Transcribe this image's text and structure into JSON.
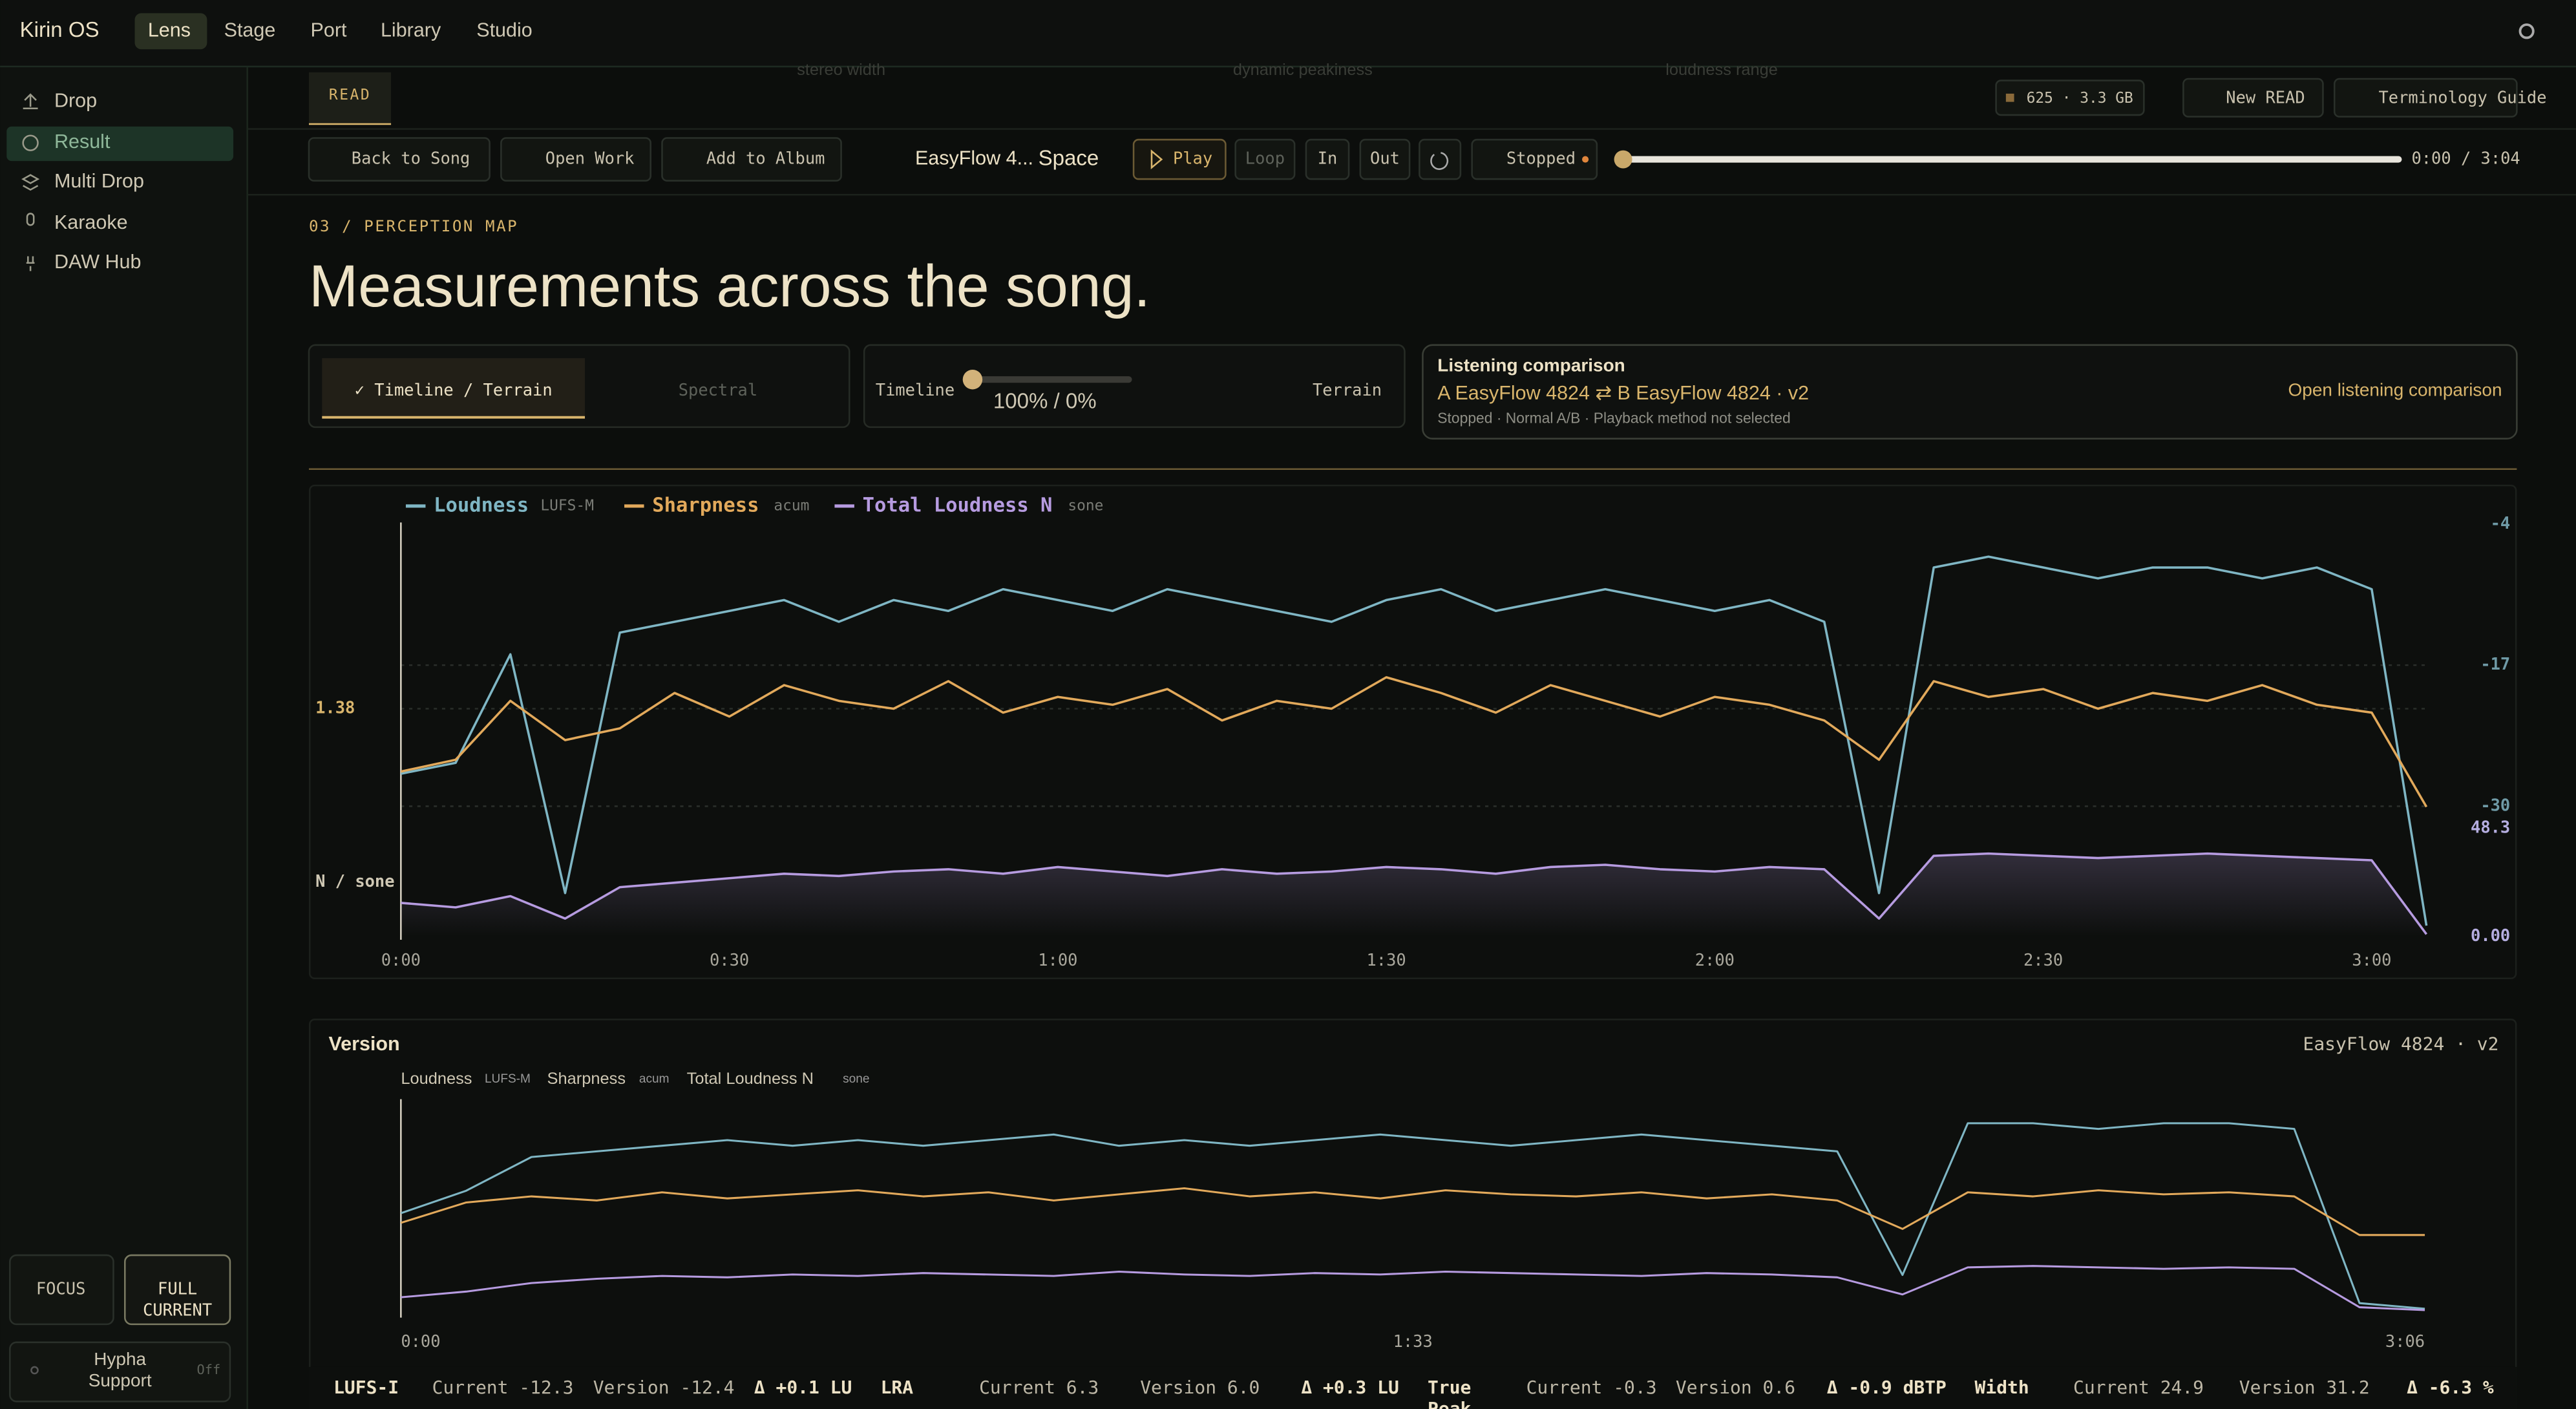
{
  "topbar": {
    "brand": "Kirin OS",
    "tabs": [
      "Lens",
      "Stage",
      "Port",
      "Library",
      "Studio"
    ]
  },
  "sidebar": {
    "items": [
      "Drop",
      "Result",
      "Multi Drop",
      "Karaoke",
      "DAW Hub"
    ],
    "focus": "FOCUS",
    "full": [
      "FULL",
      "CURRENT"
    ],
    "support": [
      "Hypha",
      "Support"
    ],
    "support_state": "Off"
  },
  "header": {
    "tab": "READ",
    "faded": [
      "stereo width",
      "dynamic peakiness",
      "loudness range"
    ],
    "storage": "625 · 3.3 GB",
    "new": "New READ",
    "guide": "Terminology Guide"
  },
  "toolbar": {
    "back": "Back to Song",
    "open": "Open Work",
    "album": "Add to Album",
    "track": "EasyFlow 4...",
    "space": "Space",
    "play": "Play",
    "loop": "Loop",
    "in": "In",
    "out": "Out",
    "status": "Stopped",
    "time": "0:00 / 3:04"
  },
  "section": {
    "kicker": "03 / PERCEPTION MAP",
    "title": "Measurements across the song."
  },
  "view": {
    "tabs": [
      "✓ Timeline / Terrain",
      "Spectral"
    ],
    "left": "Timeline",
    "mix": "100% / 0%",
    "right": "Terrain"
  },
  "compare": {
    "title": "Listening comparison",
    "pair": "A EasyFlow 4824 ⇄ B EasyFlow 4824 · v2",
    "status": "Stopped · Normal A/B · Playback method not selected",
    "link": "Open listening comparison"
  },
  "charts": [
    {
      "type": "line",
      "grid": true,
      "left_label": "N / sone",
      "xlim": [
        0,
        185
      ],
      "xticks": [
        {
          "value": 0,
          "label": "0:00"
        },
        {
          "value": 30,
          "label": "0:30"
        },
        {
          "value": 60,
          "label": "1:00"
        },
        {
          "value": 90,
          "label": "1:30"
        },
        {
          "value": 120,
          "label": "2:00"
        },
        {
          "value": 150,
          "label": "2:30"
        },
        {
          "value": 180,
          "label": "3:00"
        }
      ],
      "x": [
        0,
        5,
        10,
        15,
        20,
        25,
        30,
        35,
        40,
        45,
        50,
        55,
        60,
        65,
        70,
        75,
        80,
        85,
        90,
        95,
        100,
        105,
        110,
        115,
        120,
        125,
        130,
        135,
        140,
        145,
        150,
        155,
        160,
        165,
        170,
        175,
        180,
        185
      ],
      "series": [
        {
          "name": "Loudness",
          "unit": "LUFS-M",
          "color": "#7fb6c4",
          "ylim": [
            -42,
            -4
          ],
          "yticks": [
            -4,
            -17,
            -30
          ],
          "values": [
            -27,
            -26,
            -16,
            -38,
            -14,
            -13,
            -12,
            -11,
            -13,
            -11,
            -12,
            -10,
            -11,
            -12,
            -10,
            -11,
            -12,
            -13,
            -11,
            -10,
            -12,
            -11,
            -10,
            -11,
            -12,
            -11,
            -13,
            -38,
            -8,
            -7,
            -8,
            -9,
            -8,
            -8,
            -9,
            -8,
            -10,
            -41
          ]
        },
        {
          "name": "Sharpness",
          "unit": "acum",
          "color": "#e2a95b",
          "ylim": [
            0.8,
            1.85
          ],
          "yticks": [
            1.38
          ],
          "values": [
            1.22,
            1.25,
            1.4,
            1.3,
            1.33,
            1.42,
            1.36,
            1.44,
            1.4,
            1.38,
            1.45,
            1.37,
            1.41,
            1.39,
            1.43,
            1.35,
            1.4,
            1.38,
            1.46,
            1.42,
            1.37,
            1.44,
            1.4,
            1.36,
            1.41,
            1.39,
            1.35,
            1.25,
            1.45,
            1.41,
            1.43,
            1.38,
            1.42,
            1.4,
            1.44,
            1.39,
            1.37,
            1.13
          ]
        },
        {
          "name": "Total Loudness N",
          "unit": "sone",
          "color": "#b69be0",
          "ylim": [
            0,
            184
          ],
          "yticks": [
            48.3,
            {
              "value": 0,
              "label": "0.00"
            }
          ],
          "values": [
            15,
            13,
            18,
            8,
            22,
            24,
            26,
            28,
            27,
            29,
            30,
            28,
            31,
            29,
            27,
            30,
            28,
            29,
            31,
            30,
            28,
            31,
            32,
            30,
            29,
            31,
            30,
            8,
            36,
            37,
            36,
            35,
            36,
            37,
            36,
            35,
            34,
            1
          ]
        }
      ]
    },
    {
      "type": "line",
      "title": "Version",
      "subtitle": "EasyFlow 4824 · v2",
      "xlim": [
        0,
        186
      ],
      "xticks": [
        {
          "value": 0,
          "label": "0:00"
        },
        {
          "value": 93,
          "label": "1:33"
        },
        {
          "value": 186,
          "label": "3:06"
        }
      ],
      "x": [
        0,
        6,
        12,
        18,
        24,
        30,
        36,
        42,
        48,
        54,
        60,
        66,
        72,
        78,
        84,
        90,
        96,
        102,
        108,
        114,
        120,
        126,
        132,
        138,
        144,
        150,
        156,
        162,
        168,
        174,
        180,
        186
      ],
      "series": [
        {
          "name": "Loudness",
          "unit": "LUFS-M",
          "color": "#7fb6c4",
          "ylim": [
            -42,
            -4
          ],
          "values": [
            -24,
            -20,
            -14,
            -13,
            -12,
            -11,
            -12,
            -11,
            -12,
            -11,
            -10,
            -12,
            -11,
            -12,
            -11,
            -10,
            -11,
            -12,
            -11,
            -10,
            -11,
            -12,
            -13,
            -35,
            -8,
            -8,
            -9,
            -8,
            -8,
            -9,
            -40,
            -41
          ]
        },
        {
          "name": "Sharpness",
          "unit": "acum",
          "color": "#e2a95b",
          "ylim": [
            0.8,
            1.85
          ],
          "values": [
            1.25,
            1.35,
            1.38,
            1.36,
            1.4,
            1.37,
            1.39,
            1.41,
            1.38,
            1.4,
            1.36,
            1.39,
            1.42,
            1.38,
            1.4,
            1.37,
            1.41,
            1.39,
            1.38,
            1.4,
            1.37,
            1.39,
            1.36,
            1.22,
            1.4,
            1.38,
            1.41,
            1.39,
            1.4,
            1.38,
            1.19,
            1.19
          ]
        },
        {
          "name": "Total Loudness N",
          "unit": "sone",
          "color": "#b69be0",
          "ylim": [
            0,
            150
          ],
          "values": [
            12,
            16,
            22,
            25,
            27,
            26,
            28,
            27,
            29,
            28,
            27,
            30,
            28,
            27,
            29,
            28,
            30,
            29,
            28,
            27,
            29,
            28,
            26,
            14,
            33,
            34,
            33,
            32,
            33,
            32,
            5,
            3
          ]
        }
      ]
    }
  ],
  "stats": [
    {
      "label": [
        "LUFS-I"
      ],
      "current": "Current -12.3",
      "version": "Version -12.4",
      "delta": "Δ +0.1 LU"
    },
    {
      "label": [
        "LRA"
      ],
      "current": "Current 6.3",
      "version": "Version 6.0",
      "delta": "Δ +0.3 LU"
    },
    {
      "label": [
        "True",
        "Peak"
      ],
      "current": "Current -0.3",
      "version": "Version 0.6",
      "delta": "Δ -0.9 dBTP"
    },
    {
      "label": [
        "Width"
      ],
      "current": "Current 24.9",
      "version": "Version 31.2",
      "delta": "Δ -6.3 %"
    }
  ]
}
